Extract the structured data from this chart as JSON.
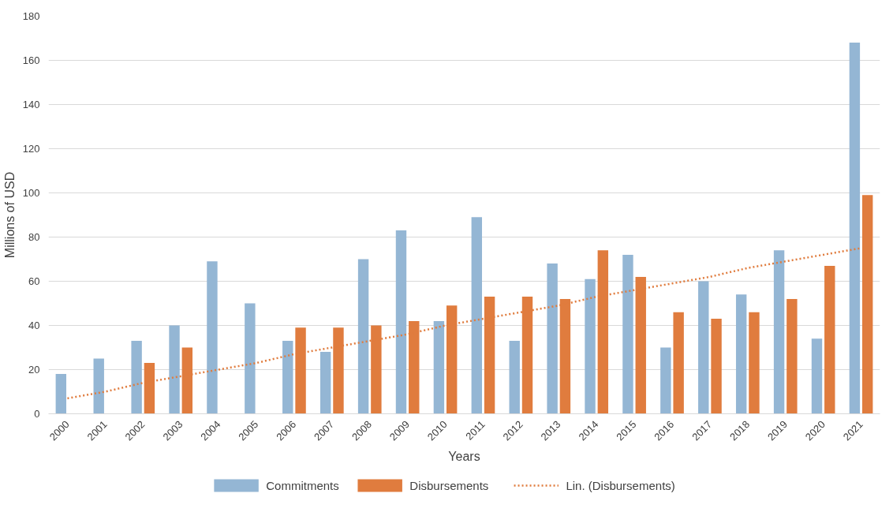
{
  "chart_data": {
    "type": "bar",
    "xlabel": "Years",
    "ylabel": "Millions of USD",
    "categories": [
      "2000",
      "2001",
      "2002",
      "2003",
      "2004",
      "2005",
      "2006",
      "2007",
      "2008",
      "2009",
      "2010",
      "2011",
      "2012",
      "2013",
      "2014",
      "2015",
      "2016",
      "2017",
      "2018",
      "2019",
      "2020",
      "2021"
    ],
    "series": [
      {
        "name": "Commitments",
        "color": "#94b6d4",
        "values": [
          18,
          25,
          33,
          40,
          69,
          50,
          33,
          28,
          70,
          83,
          42,
          89,
          33,
          68,
          61,
          72,
          30,
          60,
          54,
          74,
          34,
          168
        ]
      },
      {
        "name": "Disbursements",
        "color": "#e07c3e",
        "values": [
          null,
          null,
          23,
          30,
          null,
          null,
          39,
          39,
          40,
          42,
          49,
          53,
          53,
          52,
          74,
          62,
          46,
          43,
          46,
          52,
          67,
          99
        ]
      },
      {
        "name": "Lin. (Disbursements)",
        "type": "line",
        "color": "#e07c3e",
        "line_style": "dotted",
        "values": [
          7,
          10,
          14,
          17,
          20,
          23,
          27,
          30,
          33,
          36,
          40,
          43,
          46,
          49,
          53,
          56,
          59,
          62,
          66,
          69,
          72,
          75
        ]
      }
    ],
    "ylim": [
      0,
      180
    ],
    "yticks": [
      0,
      20,
      40,
      60,
      80,
      100,
      120,
      140,
      160,
      180
    ],
    "grid": "y",
    "legend": "bottom"
  }
}
